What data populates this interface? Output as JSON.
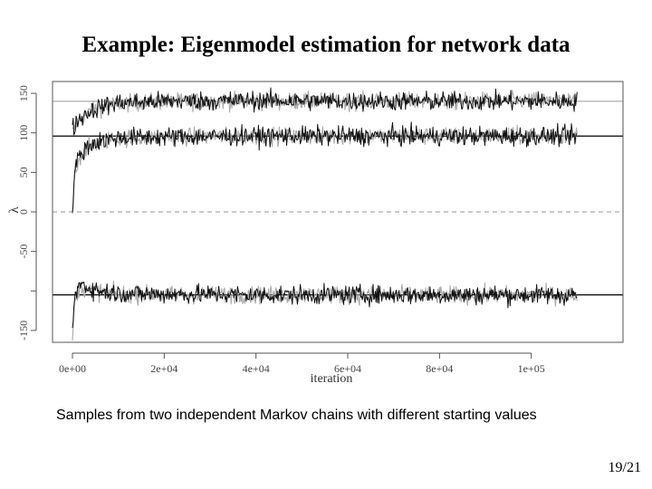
{
  "slide": {
    "title": "Example: Eigenmodel estimation for network data",
    "caption": "Samples from two independent Markov chains with different starting values",
    "page_number": "19/21"
  },
  "chart_data": {
    "type": "line",
    "xlabel": "iteration",
    "ylabel": "λ",
    "xlim": [
      0,
      120000
    ],
    "ylim": [
      -165,
      165
    ],
    "x_ticks": [
      0,
      20000,
      40000,
      60000,
      80000,
      100000
    ],
    "x_tick_labels": [
      "0e+00",
      "2e+04",
      "4e+04",
      "6e+04",
      "8e+04",
      "1e+05"
    ],
    "y_ticks": [
      -150,
      -100,
      -50,
      0,
      50,
      100,
      150
    ],
    "y_tick_labels": [
      "-150",
      "",
      "-50",
      "0",
      "50",
      "100",
      "150"
    ],
    "reference_lines": [
      {
        "y": 140,
        "color": "#9a9a9a",
        "style": "solid"
      },
      {
        "y": 96,
        "color": "#000000",
        "style": "solid"
      },
      {
        "y": 0,
        "color": "#9a9a9a",
        "style": "dashed"
      },
      {
        "y": -105,
        "color": "#000000",
        "style": "solid"
      }
    ],
    "series": [
      {
        "chain": 1,
        "color": "#111111",
        "x": [
          0,
          1000,
          3000,
          6000,
          10000,
          20000,
          40000,
          60000,
          80000,
          100000,
          110000
        ],
        "values": [
          105,
          115,
          125,
          133,
          138,
          140,
          141,
          140,
          140,
          140,
          140
        ]
      },
      {
        "chain": 1,
        "color": "#111111",
        "x": [
          0,
          500,
          1500,
          3000,
          6000,
          10000,
          20000,
          40000,
          60000,
          80000,
          100000,
          110000
        ],
        "values": [
          3,
          55,
          70,
          82,
          90,
          94,
          95,
          96,
          96,
          96,
          96,
          96
        ]
      },
      {
        "chain": 1,
        "color": "#111111",
        "x": [
          0,
          500,
          1500,
          3000,
          6000,
          10000,
          20000,
          40000,
          60000,
          80000,
          100000,
          110000
        ],
        "values": [
          -150,
          -110,
          -90,
          -95,
          -100,
          -103,
          -104,
          -105,
          -105,
          -105,
          -105,
          -105
        ]
      },
      {
        "chain": 2,
        "color": "#aaaaaa",
        "x": [
          0,
          1000,
          3000,
          6000,
          10000,
          20000,
          40000,
          60000,
          80000,
          100000,
          110000
        ],
        "values": [
          100,
          112,
          124,
          132,
          137,
          140,
          140,
          140,
          140,
          141,
          140
        ]
      },
      {
        "chain": 2,
        "color": "#aaaaaa",
        "x": [
          0,
          500,
          1500,
          3000,
          6000,
          10000,
          20000,
          40000,
          60000,
          80000,
          100000,
          110000
        ],
        "values": [
          0,
          52,
          68,
          80,
          89,
          93,
          95,
          96,
          96,
          96,
          96,
          96
        ]
      },
      {
        "chain": 2,
        "color": "#aaaaaa",
        "x": [
          0,
          500,
          1500,
          3000,
          6000,
          10000,
          20000,
          40000,
          60000,
          80000,
          100000,
          110000
        ],
        "values": [
          -160,
          -115,
          -95,
          -98,
          -101,
          -104,
          -105,
          -105,
          -105,
          -105,
          -105,
          -105
        ]
      }
    ],
    "noise_sd": 6
  }
}
